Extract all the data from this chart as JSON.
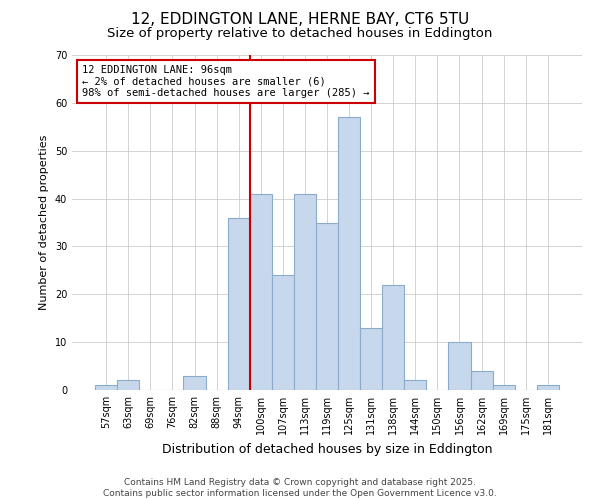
{
  "title": "12, EDDINGTON LANE, HERNE BAY, CT6 5TU",
  "subtitle": "Size of property relative to detached houses in Eddington",
  "xlabel": "Distribution of detached houses by size in Eddington",
  "ylabel": "Number of detached properties",
  "footer_line1": "Contains HM Land Registry data © Crown copyright and database right 2025.",
  "footer_line2": "Contains public sector information licensed under the Open Government Licence v3.0.",
  "bin_labels": [
    "57sqm",
    "63sqm",
    "69sqm",
    "76sqm",
    "82sqm",
    "88sqm",
    "94sqm",
    "100sqm",
    "107sqm",
    "113sqm",
    "119sqm",
    "125sqm",
    "131sqm",
    "138sqm",
    "144sqm",
    "150sqm",
    "156sqm",
    "162sqm",
    "169sqm",
    "175sqm",
    "181sqm"
  ],
  "bin_values": [
    1,
    2,
    0,
    0,
    3,
    0,
    36,
    41,
    24,
    41,
    35,
    57,
    13,
    22,
    2,
    0,
    10,
    4,
    1,
    0,
    1
  ],
  "bar_color": "#c8d8ec",
  "bar_edge_color": "#8aabcc",
  "vline_x_idx": 6.5,
  "vline_color": "#cc0000",
  "annotation_text": "12 EDDINGTON LANE: 96sqm\n← 2% of detached houses are smaller (6)\n98% of semi-detached houses are larger (285) →",
  "annotation_box_color": "#cc0000",
  "ylim": [
    0,
    70
  ],
  "yticks": [
    0,
    10,
    20,
    30,
    40,
    50,
    60,
    70
  ],
  "background_color": "#ffffff",
  "grid_color": "#cccccc",
  "title_fontsize": 11,
  "subtitle_fontsize": 9.5,
  "xlabel_fontsize": 9,
  "ylabel_fontsize": 8,
  "tick_fontsize": 7,
  "ann_fontsize": 7.5,
  "footer_fontsize": 6.5
}
